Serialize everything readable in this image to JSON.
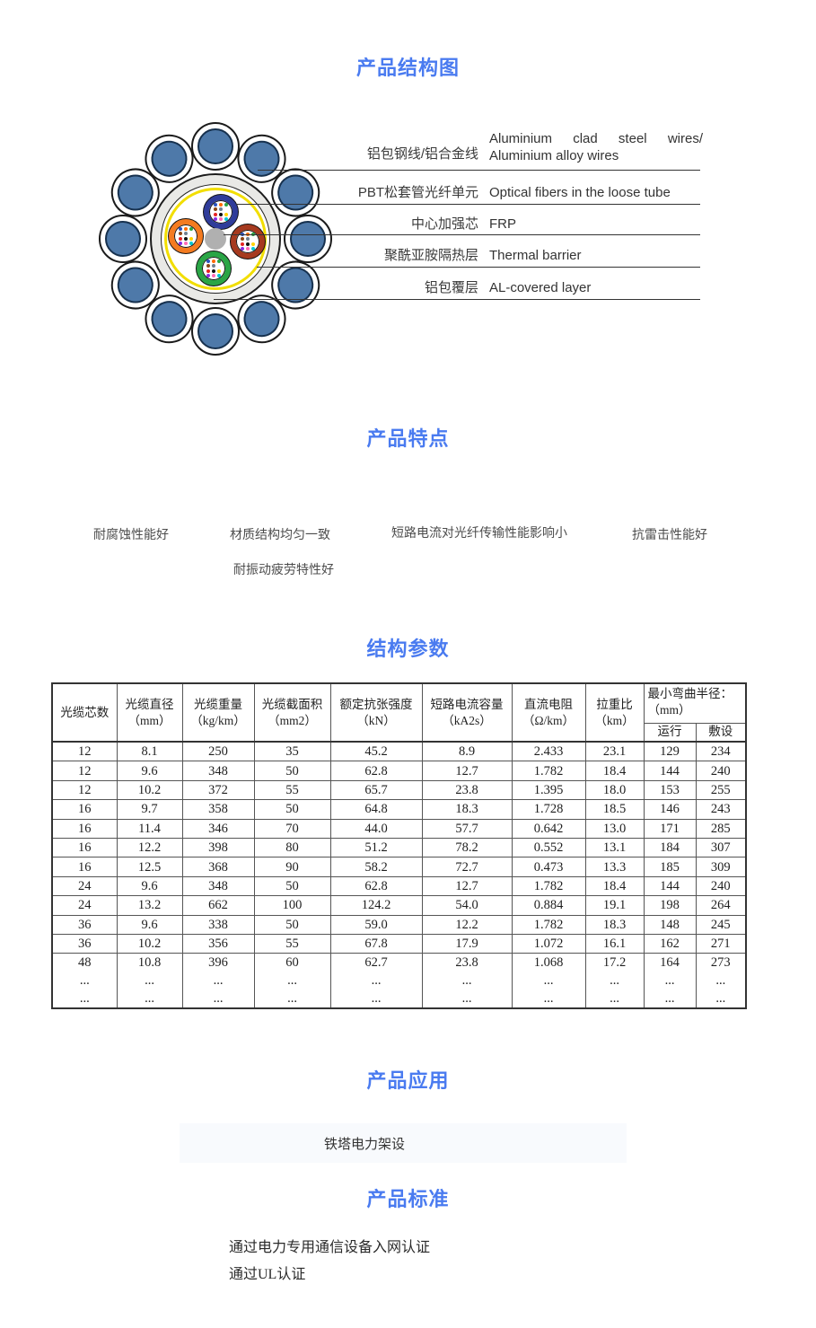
{
  "page": {
    "accent_color": "#4a7bf0"
  },
  "sections": {
    "structure": {
      "title": "产品结构图"
    },
    "features": {
      "title": "产品特点"
    },
    "parameters": {
      "title": "结构参数"
    },
    "application": {
      "title": "产品应用"
    },
    "standards": {
      "title": "产品标准"
    }
  },
  "diagram": {
    "labels": [
      {
        "zh": "铝包钢线/铝合金线",
        "en": "Aluminium clad steel wires/ Aluminium alloy wires"
      },
      {
        "zh": "PBT松套管光纤单元",
        "en": "Optical fibers in the loose tube"
      },
      {
        "zh": "中心加强芯",
        "en": "FRP"
      },
      {
        "zh": "聚酰亚胺隔热层",
        "en": "Thermal barrier"
      },
      {
        "zh": "铝包覆层",
        "en": "AL-covered layer"
      }
    ],
    "colors": {
      "wire_fill": "#4e79a9",
      "al_ring": "#e9e9e6",
      "thermal_ring": "#f2de00",
      "tube_blue": "#2f3c9a",
      "tube_orange": "#f47b20",
      "tube_red": "#a63a1f",
      "tube_green": "#2aa546",
      "frp": "#b0b0b0"
    },
    "fiber_colors": [
      "#2a52be",
      "#ff6a00",
      "#28a745",
      "#8b4513",
      "#708090",
      "#ffffff",
      "#e62222",
      "#111111",
      "#ffd400",
      "#8a2be2",
      "#ff69b4",
      "#00c8d2"
    ]
  },
  "features": {
    "items": [
      "耐腐蚀性能好",
      "材质结构均匀一致",
      "短路电流对光纤传输性能影响小",
      "抗雷击性能好",
      "耐振动疲劳特性好"
    ]
  },
  "table": {
    "headers": [
      "光缆芯数",
      "光缆直径\n（mm）",
      "光缆重量\n（kg/km）",
      "光缆截面积\n（mm2）",
      "额定抗张强度\n（kN）",
      "短路电流容量\n（kA2s）",
      "直流电阻\n（Ω/km）",
      "拉重比\n（km）"
    ],
    "bend": {
      "title": "最小弯曲半径：\n （mm）",
      "sub": [
        "运行",
        "敷设"
      ]
    },
    "rows": [
      [
        "12",
        "8.1",
        "250",
        "35",
        "45.2",
        "8.9",
        "2.433",
        "23.1",
        "129",
        "234"
      ],
      [
        "12",
        "9.6",
        "348",
        "50",
        "62.8",
        "12.7",
        "1.782",
        "18.4",
        "144",
        "240"
      ],
      [
        "12",
        "10.2",
        "372",
        "55",
        "65.7",
        "23.8",
        "1.395",
        "18.0",
        "153",
        "255"
      ],
      [
        "16",
        "9.7",
        "358",
        "50",
        "64.8",
        "18.3",
        "1.728",
        "18.5",
        "146",
        "243"
      ],
      [
        "16",
        "11.4",
        "346",
        "70",
        "44.0",
        "57.7",
        "0.642",
        "13.0",
        "171",
        "285"
      ],
      [
        "16",
        "12.2",
        "398",
        "80",
        "51.2",
        "78.2",
        "0.552",
        "13.1",
        "184",
        "307"
      ],
      [
        "16",
        "12.5",
        "368",
        "90",
        "58.2",
        "72.7",
        "0.473",
        "13.3",
        "185",
        "309"
      ],
      [
        "24",
        "9.6",
        "348",
        "50",
        "62.8",
        "12.7",
        "1.782",
        "18.4",
        "144",
        "240"
      ],
      [
        "24",
        "13.2",
        "662",
        "100",
        "124.2",
        "54.0",
        "0.884",
        "19.1",
        "198",
        "264"
      ],
      [
        "36",
        "9.6",
        "338",
        "50",
        "59.0",
        "12.2",
        "1.782",
        "18.3",
        "148",
        "245"
      ],
      [
        "36",
        "10.2",
        "356",
        "55",
        "67.8",
        "17.9",
        "1.072",
        "16.1",
        "162",
        "271"
      ],
      [
        "48\n...\n...",
        "10.8\n...\n...",
        "396\n...\n...",
        "60\n...\n...",
        "62.7\n...\n...",
        "23.8\n...\n...",
        "1.068\n...\n...",
        "17.2\n...\n...",
        "164\n...\n...",
        "273\n...\n..."
      ]
    ]
  },
  "application": {
    "text": "铁塔电力架设"
  },
  "standards": {
    "items": [
      "通过电力专用通信设备入网认证",
      "通过UL认证"
    ]
  }
}
